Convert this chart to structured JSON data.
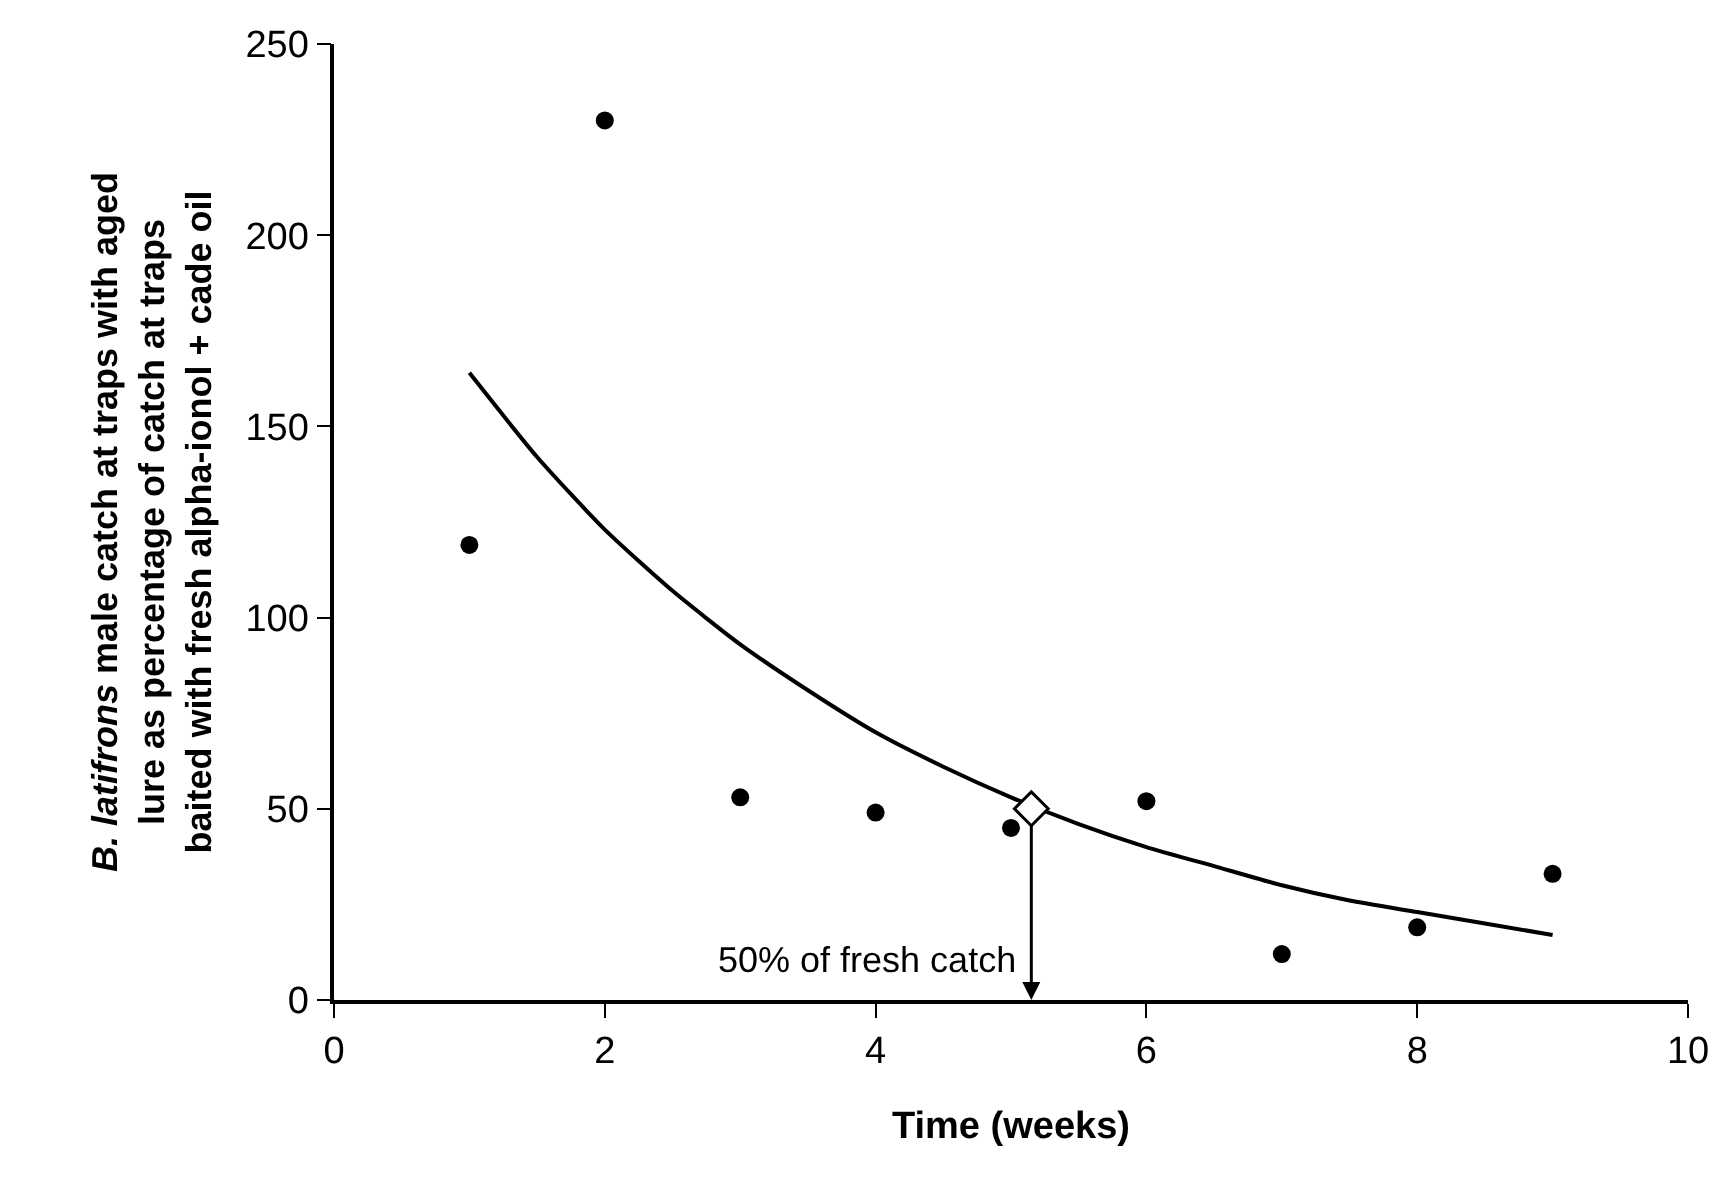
{
  "chart_data": {
    "type": "scatter",
    "xlabel": "Time (weeks)",
    "ylabel": "B. latifrons male catch at traps with aged\nlure as percentage of catch at traps\nbaited with fresh alpha-ionol + cade oil",
    "x": [
      1,
      2,
      3,
      4,
      5,
      6,
      7,
      8,
      9
    ],
    "series": [
      {
        "color": "#000000",
        "marker": "circle",
        "values": [
          119,
          230,
          53,
          49,
          45,
          52,
          12,
          19,
          33
        ]
      },
      {
        "type": "line",
        "color": "#000000",
        "marker": "none",
        "x": [
          1,
          1.5,
          2,
          2.5,
          3,
          3.5,
          4,
          4.5,
          5,
          5.5,
          6,
          6.5,
          7,
          7.5,
          8,
          8.5,
          9
        ],
        "values": [
          164,
          142,
          123,
          107,
          93,
          81,
          70,
          61,
          53,
          46,
          40,
          35,
          30,
          26,
          23,
          20,
          17
        ]
      },
      {
        "color": "#ffffff",
        "marker": "diamond",
        "x": [
          5.15
        ],
        "values": [
          50
        ]
      }
    ],
    "annotations": [
      "50% of fresh catch"
    ],
    "xlim": [
      0,
      10
    ],
    "xticks": [
      0,
      2,
      4,
      6,
      8,
      10
    ],
    "ylim": [
      0,
      250
    ],
    "yticks": [
      0,
      50,
      100,
      150,
      200,
      250
    ]
  }
}
